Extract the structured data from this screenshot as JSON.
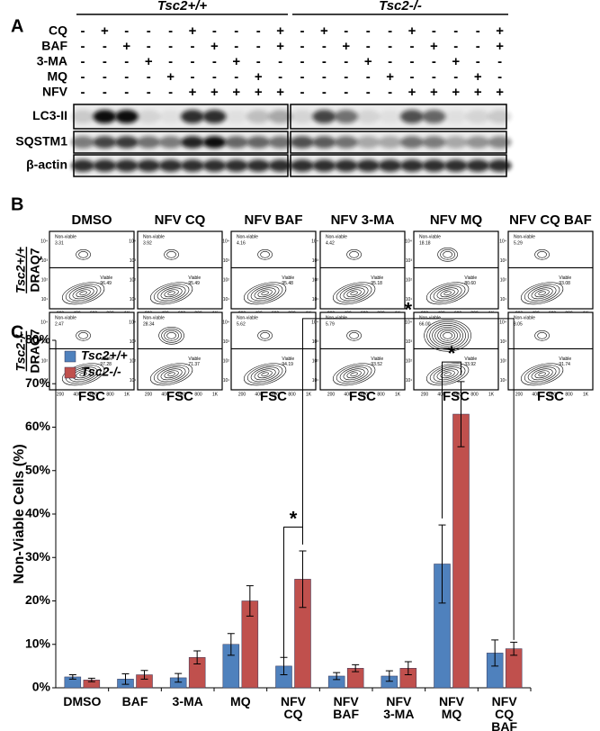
{
  "panel_a": {
    "label": "A",
    "groups": [
      "Tsc2+/+",
      "Tsc2-/-"
    ],
    "treatments": [
      {
        "name": "CQ",
        "signs": [
          "-",
          "+",
          "-",
          "-",
          "-",
          "+",
          "-",
          "-",
          "-",
          "+",
          "-",
          "+",
          "-",
          "-",
          "-",
          "+",
          "-",
          "-",
          "-",
          "+"
        ]
      },
      {
        "name": "BAF",
        "signs": [
          "-",
          "-",
          "+",
          "-",
          "-",
          "-",
          "+",
          "-",
          "-",
          "+",
          "-",
          "-",
          "+",
          "-",
          "-",
          "-",
          "+",
          "-",
          "-",
          "+"
        ]
      },
      {
        "name": "3-MA",
        "signs": [
          "-",
          "-",
          "-",
          "+",
          "-",
          "-",
          "-",
          "+",
          "-",
          "-",
          "-",
          "-",
          "-",
          "+",
          "-",
          "-",
          "-",
          "+",
          "-",
          "-"
        ]
      },
      {
        "name": "MQ",
        "signs": [
          "-",
          "-",
          "-",
          "-",
          "+",
          "-",
          "-",
          "-",
          "+",
          "-",
          "-",
          "-",
          "-",
          "-",
          "+",
          "-",
          "-",
          "-",
          "+",
          "-"
        ]
      },
      {
        "name": "NFV",
        "signs": [
          "-",
          "-",
          "-",
          "-",
          "-",
          "+",
          "+",
          "+",
          "+",
          "+",
          "-",
          "-",
          "-",
          "-",
          "-",
          "+",
          "+",
          "+",
          "+",
          "+"
        ]
      }
    ],
    "blots": [
      "LC3-II",
      "SQSTM1",
      "β-actin"
    ]
  },
  "panel_b": {
    "label": "B",
    "columns": [
      "DMSO",
      "NFV CQ",
      "NFV BAF",
      "NFV 3-MA",
      "NFV MQ",
      "NFV CQ BAF"
    ],
    "gate_labels": [
      "Non-viable",
      "Viable"
    ],
    "x_axis_label": "FSC",
    "x_ticks": [
      "200",
      "400",
      "600",
      "800",
      "1K"
    ],
    "y_ticks": [
      "10¹",
      "10²",
      "10³",
      "10⁴"
    ],
    "rows": [
      {
        "label": "Tsc2+/+",
        "stain": "DRAQ7",
        "plots": [
          {
            "non_viable": "3.31",
            "viable": "96.49"
          },
          {
            "non_viable": "3.92",
            "viable": "95.49"
          },
          {
            "non_viable": "4.16",
            "viable": "95.48"
          },
          {
            "non_viable": "4.42",
            "viable": "95.18"
          },
          {
            "non_viable": "18.18",
            "viable": "80.60"
          },
          {
            "non_viable": "5.29",
            "viable": "93.08"
          }
        ]
      },
      {
        "label": "Tsc2-/-",
        "stain": "DRAQ7",
        "plots": [
          {
            "non_viable": "2.47",
            "viable": "97.28"
          },
          {
            "non_viable": "28.34",
            "viable": "71.37"
          },
          {
            "non_viable": "5.62",
            "viable": "94.19"
          },
          {
            "non_viable": "5.79",
            "viable": "93.52"
          },
          {
            "non_viable": "66.00",
            "viable": "33.92"
          },
          {
            "non_viable": "8.05",
            "viable": "91.74"
          }
        ]
      }
    ]
  },
  "chart_data": {
    "type": "bar",
    "panel_label": "C",
    "y_label": "Non-Viable Cells (%)",
    "categories": [
      "DMSO",
      "BAF",
      "3-MA",
      "MQ",
      "NFV\nCQ",
      "NFV\nBAF",
      "NFV\n3-MA",
      "NFV\nMQ",
      "NFV\nCQ\nBAF"
    ],
    "series": [
      {
        "name": "Tsc2+/+",
        "color": "#4f81bd",
        "values": [
          2.5,
          2,
          2.3,
          10,
          5,
          2.7,
          2.7,
          28.5,
          8
        ],
        "errors": [
          0.5,
          1.2,
          1,
          2.5,
          2,
          0.8,
          1.2,
          9,
          3
        ]
      },
      {
        "name": "Tsc2-/-",
        "color": "#c0504d",
        "values": [
          1.8,
          3,
          7,
          20,
          25,
          4.5,
          4.5,
          63,
          9
        ],
        "errors": [
          0.4,
          1,
          1.5,
          3.5,
          6.5,
          0.8,
          1.5,
          7.5,
          1.5
        ]
      }
    ],
    "ylim": [
      0,
      80
    ],
    "yticks": [
      {
        "value": 0,
        "label": "0%"
      },
      {
        "value": 10,
        "label": "10%"
      },
      {
        "value": 20,
        "label": "20%"
      },
      {
        "value": 30,
        "label": "30%"
      },
      {
        "value": 40,
        "label": "40%"
      },
      {
        "value": 50,
        "label": "50%"
      },
      {
        "value": 60,
        "label": "60%"
      },
      {
        "value": 70,
        "label": "70%"
      },
      {
        "value": 80,
        "label": "80%"
      }
    ],
    "legend": "top-left",
    "annotations": [
      "*",
      "*",
      "*"
    ]
  }
}
